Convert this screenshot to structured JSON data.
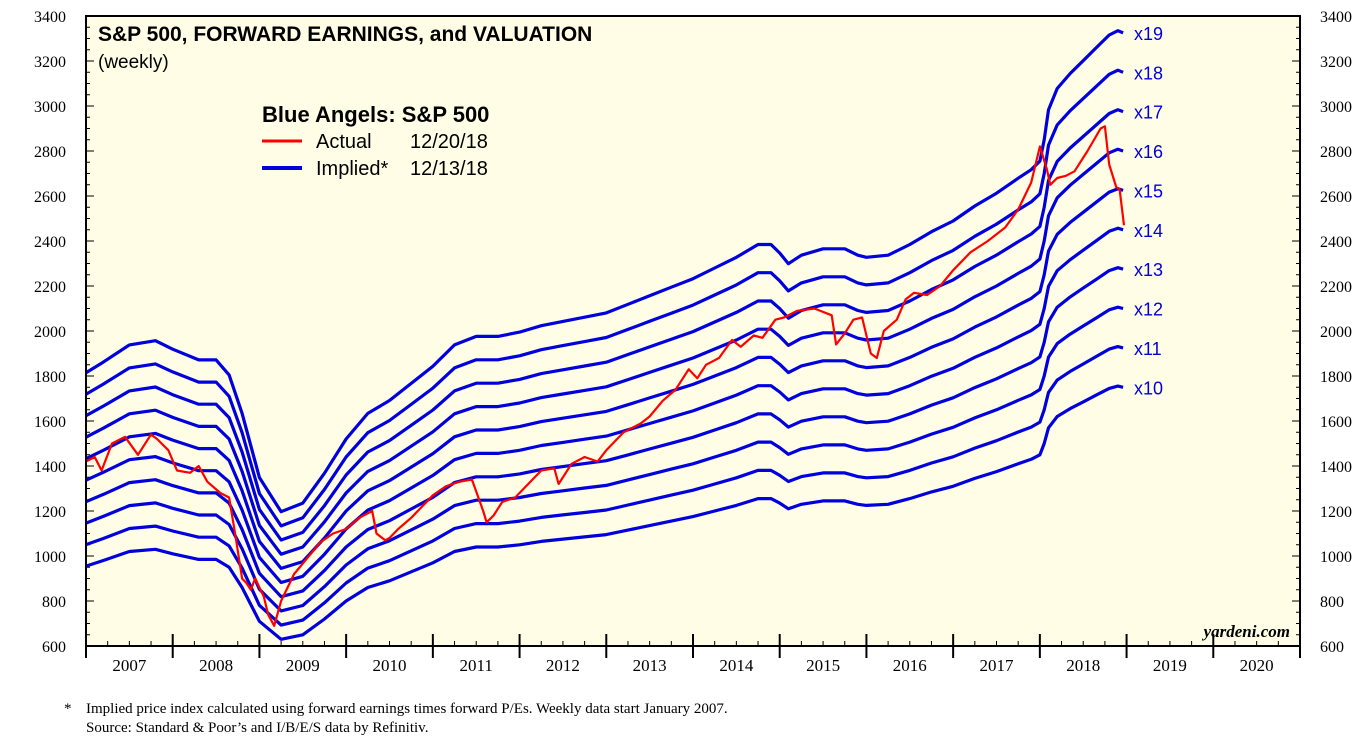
{
  "chart_data": {
    "type": "line",
    "title": "S&P 500, FORWARD EARNINGS, and VALUATION",
    "subtitle": "(weekly)",
    "legend_title": "Blue Angels: S&P 500",
    "legend": [
      {
        "name": "Actual",
        "date": "12/20/18",
        "color": "#ff0000"
      },
      {
        "name": "Implied*",
        "date": "12/13/18",
        "color": "#0000dd"
      }
    ],
    "watermark": "yardeni.com",
    "ylim": [
      600,
      3400
    ],
    "y_ticks": [
      600,
      800,
      1000,
      1200,
      1400,
      1600,
      1800,
      2000,
      2200,
      2400,
      2600,
      2800,
      3000,
      3200,
      3400
    ],
    "x_range": [
      2007.0,
      2021.0
    ],
    "x_tick_labels": [
      "2007",
      "2008",
      "2009",
      "2010",
      "2011",
      "2012",
      "2013",
      "2014",
      "2015",
      "2016",
      "2017",
      "2018",
      "2019",
      "2020"
    ],
    "forward_earnings": {
      "x": [
        2007.0,
        2007.2,
        2007.5,
        2007.8,
        2008.0,
        2008.3,
        2008.5,
        2008.65,
        2008.8,
        2009.0,
        2009.25,
        2009.5,
        2009.75,
        2010.0,
        2010.25,
        2010.5,
        2010.75,
        2011.0,
        2011.25,
        2011.5,
        2011.75,
        2012.0,
        2012.25,
        2012.5,
        2012.75,
        2013.0,
        2013.25,
        2013.5,
        2013.75,
        2014.0,
        2014.25,
        2014.5,
        2014.75,
        2014.9,
        2015.0,
        2015.1,
        2015.25,
        2015.5,
        2015.75,
        2015.9,
        2016.0,
        2016.25,
        2016.5,
        2016.75,
        2017.0,
        2017.25,
        2017.5,
        2017.75,
        2017.9,
        2018.0,
        2018.05,
        2018.1,
        2018.2,
        2018.35,
        2018.5,
        2018.65,
        2018.8,
        2018.9,
        2018.96
      ],
      "values": [
        95.5,
        98.0,
        102.0,
        103.0,
        101.0,
        98.5,
        98.5,
        95.0,
        86.0,
        71.0,
        63.0,
        65.0,
        72.0,
        80.0,
        86.0,
        89.0,
        93.0,
        97.0,
        102.0,
        104.0,
        104.0,
        105.0,
        106.5,
        107.5,
        108.5,
        109.5,
        111.5,
        113.5,
        115.5,
        117.5,
        120.0,
        122.5,
        125.5,
        125.5,
        123.5,
        121.0,
        123.0,
        124.5,
        124.5,
        123.0,
        122.5,
        123.0,
        125.5,
        128.5,
        131.0,
        134.5,
        137.5,
        141.0,
        143.0,
        145.0,
        150.0,
        157.0,
        162.0,
        165.5,
        168.5,
        171.5,
        174.5,
        175.5,
        175.0
      ]
    },
    "pe_multiples": [
      10,
      11,
      12,
      13,
      14,
      15,
      16,
      17,
      18,
      19
    ],
    "pe_labels": [
      "x10",
      "x11",
      "x12",
      "x13",
      "x14",
      "x15",
      "x16",
      "x17",
      "x18",
      "x19"
    ],
    "actual": {
      "x": [
        2007.0,
        2007.1,
        2007.18,
        2007.3,
        2007.45,
        2007.6,
        2007.75,
        2007.82,
        2007.95,
        2008.05,
        2008.2,
        2008.3,
        2008.4,
        2008.55,
        2008.65,
        2008.72,
        2008.8,
        2008.85,
        2008.9,
        2008.95,
        2009.05,
        2009.1,
        2009.17,
        2009.25,
        2009.4,
        2009.55,
        2009.7,
        2009.85,
        2010.0,
        2010.15,
        2010.3,
        2010.35,
        2010.45,
        2010.5,
        2010.6,
        2010.75,
        2010.9,
        2011.0,
        2011.15,
        2011.3,
        2011.45,
        2011.58,
        2011.62,
        2011.7,
        2011.8,
        2011.95,
        2012.1,
        2012.25,
        2012.4,
        2012.45,
        2012.6,
        2012.75,
        2012.9,
        2013.0,
        2013.2,
        2013.4,
        2013.5,
        2013.65,
        2013.8,
        2013.95,
        2014.05,
        2014.15,
        2014.3,
        2014.45,
        2014.55,
        2014.7,
        2014.8,
        2014.95,
        2015.05,
        2015.2,
        2015.4,
        2015.6,
        2015.65,
        2015.75,
        2015.85,
        2015.95,
        2016.05,
        2016.12,
        2016.2,
        2016.35,
        2016.45,
        2016.55,
        2016.7,
        2016.85,
        2017.0,
        2017.2,
        2017.4,
        2017.6,
        2017.75,
        2017.9,
        2018.0,
        2018.08,
        2018.12,
        2018.2,
        2018.3,
        2018.4,
        2018.55,
        2018.7,
        2018.75,
        2018.8,
        2018.88,
        2018.92,
        2018.97
      ],
      "values": [
        1420,
        1440,
        1380,
        1500,
        1530,
        1450,
        1540,
        1520,
        1470,
        1380,
        1370,
        1400,
        1330,
        1280,
        1260,
        1100,
        900,
        880,
        850,
        900,
        820,
        740,
        690,
        800,
        920,
        990,
        1060,
        1100,
        1120,
        1170,
        1200,
        1100,
        1070,
        1080,
        1120,
        1170,
        1230,
        1270,
        1310,
        1330,
        1340,
        1200,
        1150,
        1180,
        1240,
        1260,
        1320,
        1380,
        1390,
        1320,
        1410,
        1440,
        1420,
        1470,
        1550,
        1590,
        1620,
        1690,
        1740,
        1830,
        1790,
        1850,
        1880,
        1960,
        1930,
        1980,
        1970,
        2050,
        2060,
        2090,
        2100,
        2070,
        1940,
        1990,
        2050,
        2060,
        1900,
        1880,
        2000,
        2050,
        2140,
        2170,
        2160,
        2200,
        2270,
        2350,
        2400,
        2460,
        2540,
        2660,
        2820,
        2720,
        2650,
        2680,
        2690,
        2710,
        2800,
        2900,
        2910,
        2740,
        2640,
        2630,
        2470
      ]
    }
  },
  "footnote": {
    "marker": "*",
    "text": "Implied price index calculated using forward earnings times forward P/Es. Weekly data start January 2007.",
    "source": "Source: Standard & Poor’s and I/B/E/S data by Refinitiv."
  }
}
